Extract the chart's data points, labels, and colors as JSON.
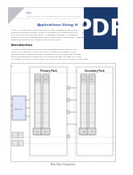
{
  "bg_color": "#ffffff",
  "header_left_bg": "#c8c8d0",
  "header_text_color": "#5566aa",
  "title_color": "#3355aa",
  "title_text": "Applications Using the DS2760 or DS2761",
  "body_text_color": "#444444",
  "pdf_bg_color": "#1a3a6b",
  "pdf_text_color": "#ffffff",
  "diagram_border_color": "#999999",
  "diagram_bg": "#ffffff",
  "dashed_box_color": "#666666",
  "cell_bg": "#e8e8e8",
  "cell_border": "#555555",
  "chip_bg": "#d8d8d8",
  "wire_color": "#555555",
  "label_color": "#444444",
  "gray_bg": "#dddddd"
}
